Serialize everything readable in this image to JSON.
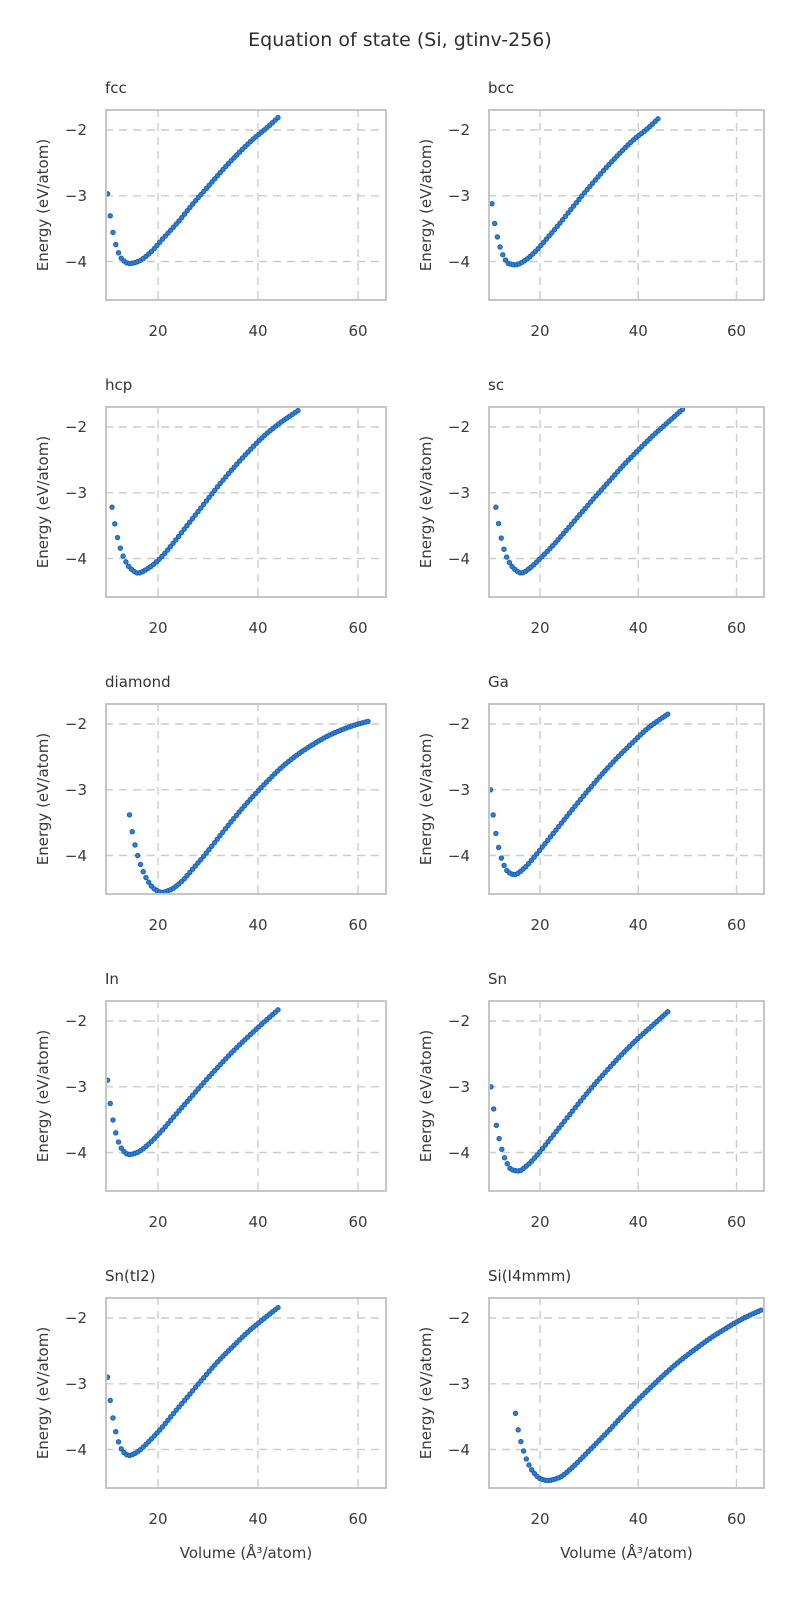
{
  "figure": {
    "title": "Equation of state (Si, gtinv-256)",
    "xlabel": "Volume (Å³/atom)",
    "ylabel": "Energy (eV/atom)"
  },
  "chart_data": {
    "type": "scatter",
    "title": "Equation of state (Si, gtinv-256)",
    "xlabel": "Volume (Å³/atom)",
    "ylabel": "Energy (eV/atom)",
    "layout": "5 rows x 2 cols, shared axes",
    "xlim": [
      9.4,
      65.8
    ],
    "ylim": [
      -4.6,
      -1.68
    ],
    "xticks": [
      20,
      40,
      60
    ],
    "yticks": [
      -2,
      -3,
      -4
    ],
    "grid": "dashed",
    "legend": "none",
    "marker": {
      "shape": "circle",
      "fill": "#3080d8",
      "edge": "#1a5fb0",
      "radius_px": 2.2
    },
    "colors": {
      "grid": "#cccccc",
      "spine": "#c6c6c6",
      "text": "#3a3a3a",
      "background": "#ffffff"
    },
    "panels": [
      {
        "key": "fcc",
        "title": "fcc",
        "n_markers": 63,
        "points": [
          [
            9.9,
            -2.97
          ],
          [
            10.5,
            -3.33
          ],
          [
            11.2,
            -3.63
          ],
          [
            12.0,
            -3.85
          ],
          [
            13.0,
            -3.98
          ],
          [
            14.3,
            -4.03
          ],
          [
            16.0,
            -4.0
          ],
          [
            18.5,
            -3.86
          ],
          [
            21.0,
            -3.65
          ],
          [
            24,
            -3.4
          ],
          [
            27,
            -3.12
          ],
          [
            30,
            -2.86
          ],
          [
            33,
            -2.6
          ],
          [
            36,
            -2.36
          ],
          [
            39,
            -2.14
          ],
          [
            42,
            -1.95
          ],
          [
            44,
            -1.81
          ]
        ]
      },
      {
        "key": "bcc",
        "title": "bcc",
        "n_markers": 62,
        "points": [
          [
            10.2,
            -3.12
          ],
          [
            10.8,
            -3.44
          ],
          [
            11.6,
            -3.71
          ],
          [
            12.5,
            -3.91
          ],
          [
            13.6,
            -4.03
          ],
          [
            15.0,
            -4.05
          ],
          [
            16.8,
            -3.99
          ],
          [
            19.0,
            -3.85
          ],
          [
            21.5,
            -3.64
          ],
          [
            24,
            -3.42
          ],
          [
            27,
            -3.14
          ],
          [
            30,
            -2.87
          ],
          [
            33,
            -2.61
          ],
          [
            36,
            -2.37
          ],
          [
            39,
            -2.15
          ],
          [
            42,
            -1.97
          ],
          [
            44,
            -1.83
          ]
        ]
      },
      {
        "key": "hcp",
        "title": "hcp",
        "n_markers": 68,
        "points": [
          [
            10.8,
            -3.22
          ],
          [
            11.5,
            -3.53
          ],
          [
            12.3,
            -3.8
          ],
          [
            13.3,
            -4.01
          ],
          [
            14.5,
            -4.15
          ],
          [
            16.0,
            -4.22
          ],
          [
            18.0,
            -4.15
          ],
          [
            20.5,
            -3.99
          ],
          [
            23,
            -3.77
          ],
          [
            26,
            -3.48
          ],
          [
            29,
            -3.19
          ],
          [
            32,
            -2.9
          ],
          [
            35,
            -2.63
          ],
          [
            38,
            -2.38
          ],
          [
            41,
            -2.15
          ],
          [
            44,
            -1.96
          ],
          [
            48,
            -1.75
          ]
        ]
      },
      {
        "key": "sc",
        "title": "sc",
        "n_markers": 70,
        "points": [
          [
            11.0,
            -3.22
          ],
          [
            11.7,
            -3.53
          ],
          [
            12.5,
            -3.82
          ],
          [
            13.6,
            -4.04
          ],
          [
            14.8,
            -4.16
          ],
          [
            16.2,
            -4.22
          ],
          [
            18.0,
            -4.14
          ],
          [
            20.0,
            -4.0
          ],
          [
            22.5,
            -3.81
          ],
          [
            25,
            -3.6
          ],
          [
            28,
            -3.34
          ],
          [
            31,
            -3.08
          ],
          [
            34,
            -2.83
          ],
          [
            37,
            -2.58
          ],
          [
            40,
            -2.35
          ],
          [
            43,
            -2.13
          ],
          [
            46,
            -1.93
          ],
          [
            49,
            -1.73
          ]
        ]
      },
      {
        "key": "diamond",
        "title": "diamond",
        "n_markers": 88,
        "points": [
          [
            14.3,
            -3.38
          ],
          [
            15.0,
            -3.7
          ],
          [
            15.8,
            -3.96
          ],
          [
            16.8,
            -4.2
          ],
          [
            18.0,
            -4.39
          ],
          [
            19.3,
            -4.51
          ],
          [
            20.8,
            -4.56
          ],
          [
            22.5,
            -4.52
          ],
          [
            24.5,
            -4.41
          ],
          [
            27,
            -4.2
          ],
          [
            30,
            -3.93
          ],
          [
            33,
            -3.64
          ],
          [
            36,
            -3.36
          ],
          [
            39,
            -3.1
          ],
          [
            42,
            -2.86
          ],
          [
            45,
            -2.64
          ],
          [
            48,
            -2.46
          ],
          [
            51,
            -2.31
          ],
          [
            54,
            -2.18
          ],
          [
            57,
            -2.08
          ],
          [
            60,
            -2.0
          ],
          [
            62,
            -1.96
          ]
        ]
      },
      {
        "key": "Ga",
        "title": "Ga",
        "n_markers": 66,
        "points": [
          [
            9.9,
            -3.0
          ],
          [
            10.4,
            -3.35
          ],
          [
            11.0,
            -3.66
          ],
          [
            11.7,
            -3.92
          ],
          [
            12.5,
            -4.12
          ],
          [
            13.5,
            -4.25
          ],
          [
            14.8,
            -4.29
          ],
          [
            16.5,
            -4.21
          ],
          [
            18.5,
            -4.05
          ],
          [
            21,
            -3.82
          ],
          [
            24,
            -3.54
          ],
          [
            27,
            -3.26
          ],
          [
            30,
            -2.99
          ],
          [
            33,
            -2.73
          ],
          [
            36,
            -2.49
          ],
          [
            39,
            -2.27
          ],
          [
            42,
            -2.06
          ],
          [
            44,
            -1.95
          ],
          [
            46,
            -1.85
          ]
        ]
      },
      {
        "key": "In",
        "title": "In",
        "n_markers": 63,
        "points": [
          [
            9.9,
            -2.9
          ],
          [
            10.5,
            -3.28
          ],
          [
            11.2,
            -3.58
          ],
          [
            12.0,
            -3.82
          ],
          [
            13.0,
            -3.97
          ],
          [
            14.2,
            -4.03
          ],
          [
            15.8,
            -4.0
          ],
          [
            18.0,
            -3.88
          ],
          [
            20.5,
            -3.69
          ],
          [
            23,
            -3.47
          ],
          [
            26,
            -3.21
          ],
          [
            29,
            -2.95
          ],
          [
            32,
            -2.7
          ],
          [
            35,
            -2.46
          ],
          [
            38,
            -2.24
          ],
          [
            41,
            -2.03
          ],
          [
            44,
            -1.83
          ]
        ]
      },
      {
        "key": "Sn",
        "title": "Sn",
        "n_markers": 66,
        "points": [
          [
            10.0,
            -3.0
          ],
          [
            10.6,
            -3.36
          ],
          [
            11.3,
            -3.66
          ],
          [
            12.1,
            -3.92
          ],
          [
            13.0,
            -4.12
          ],
          [
            14.2,
            -4.26
          ],
          [
            15.6,
            -4.28
          ],
          [
            17.3,
            -4.2
          ],
          [
            19.5,
            -4.03
          ],
          [
            22,
            -3.8
          ],
          [
            25,
            -3.52
          ],
          [
            28,
            -3.24
          ],
          [
            31,
            -2.97
          ],
          [
            34,
            -2.72
          ],
          [
            37,
            -2.48
          ],
          [
            40,
            -2.26
          ],
          [
            43,
            -2.06
          ],
          [
            46,
            -1.86
          ]
        ]
      },
      {
        "key": "Sn(tI2)",
        "title": "Sn(tI2)",
        "n_markers": 63,
        "points": [
          [
            9.9,
            -2.9
          ],
          [
            10.5,
            -3.28
          ],
          [
            11.2,
            -3.6
          ],
          [
            12.0,
            -3.86
          ],
          [
            13.0,
            -4.03
          ],
          [
            14.2,
            -4.09
          ],
          [
            15.8,
            -4.04
          ],
          [
            18.0,
            -3.89
          ],
          [
            20.5,
            -3.69
          ],
          [
            23,
            -3.46
          ],
          [
            26,
            -3.19
          ],
          [
            29,
            -2.92
          ],
          [
            32,
            -2.66
          ],
          [
            35,
            -2.43
          ],
          [
            38,
            -2.21
          ],
          [
            41,
            -2.02
          ],
          [
            44,
            -1.84
          ]
        ]
      },
      {
        "key": "Si(I4mmm)",
        "title": "Si(I4mmm)",
        "n_markers": 92,
        "points": [
          [
            15.0,
            -3.45
          ],
          [
            15.6,
            -3.72
          ],
          [
            16.4,
            -3.96
          ],
          [
            17.4,
            -4.18
          ],
          [
            18.6,
            -4.34
          ],
          [
            20.0,
            -4.44
          ],
          [
            21.5,
            -4.47
          ],
          [
            23.8,
            -4.43
          ],
          [
            26,
            -4.31
          ],
          [
            28.5,
            -4.13
          ],
          [
            31,
            -3.94
          ],
          [
            34,
            -3.71
          ],
          [
            37,
            -3.47
          ],
          [
            40,
            -3.24
          ],
          [
            43,
            -3.02
          ],
          [
            46,
            -2.81
          ],
          [
            49,
            -2.62
          ],
          [
            52,
            -2.45
          ],
          [
            55,
            -2.29
          ],
          [
            58,
            -2.15
          ],
          [
            61,
            -2.02
          ],
          [
            63.5,
            -1.93
          ],
          [
            65,
            -1.88
          ]
        ]
      }
    ]
  }
}
